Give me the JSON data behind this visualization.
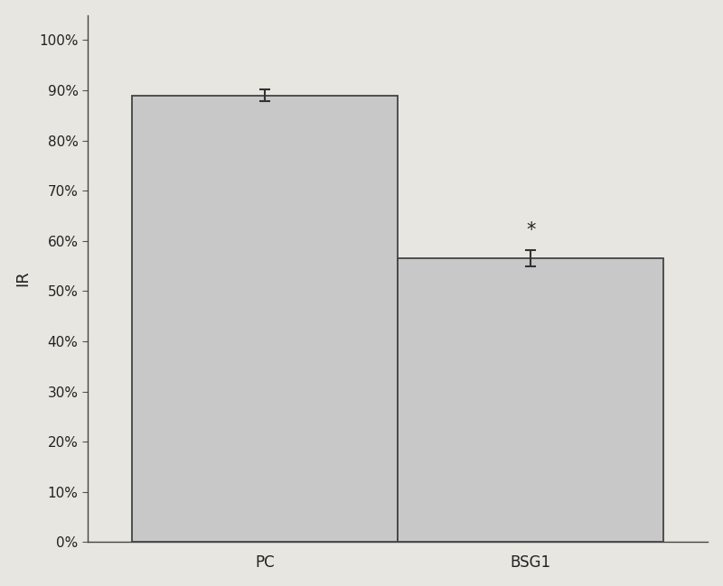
{
  "categories": [
    "PC",
    "BSG1"
  ],
  "values": [
    0.89,
    0.565
  ],
  "errors": [
    0.012,
    0.016
  ],
  "bar_color": "#c8c8c8",
  "bar_edgecolor": "#444444",
  "ylabel": "IR",
  "ylim": [
    0,
    1.05
  ],
  "yticks": [
    0.0,
    0.1,
    0.2,
    0.3,
    0.4,
    0.5,
    0.6,
    0.7,
    0.8,
    0.9,
    1.0
  ],
  "yticklabels": [
    "0%",
    "10%",
    "20%",
    "30%",
    "40%",
    "50%",
    "60%",
    "70%",
    "80%",
    "90%",
    "100%"
  ],
  "background_color": "#e8e6e0",
  "plot_bg_color": "#e8e6e0",
  "bar_width": 0.45,
  "bar_positions": [
    0.3,
    0.75
  ],
  "xlim": [
    0.0,
    1.05
  ],
  "asterisk_label": "*",
  "asterisk_bar_index": 1,
  "errorbar_color": "#333333",
  "errorbar_capsize": 4,
  "ylabel_fontsize": 13,
  "tick_fontsize": 11,
  "xlabel_fontsize": 12,
  "spine_color": "#444444"
}
